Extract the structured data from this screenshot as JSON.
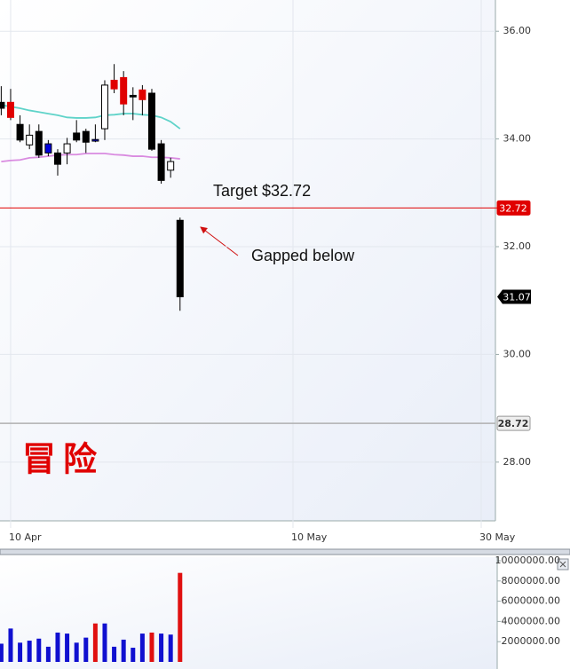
{
  "chart_data": [
    {
      "type": "candlestick",
      "x": [
        99,
        100,
        101,
        102,
        103,
        104,
        105,
        106,
        107,
        108,
        109,
        110,
        111,
        112,
        113,
        114,
        115,
        116,
        117,
        118
      ],
      "open": [
        34.68,
        34.68,
        34.27,
        33.89,
        34.14,
        33.91,
        33.74,
        33.74,
        34.11,
        34.14,
        33.99,
        34.19,
        35.09,
        35.14,
        34.81,
        34.91,
        34.85,
        33.91,
        33.42,
        32.49
      ],
      "high": [
        34.98,
        34.93,
        34.44,
        34.27,
        34.27,
        33.98,
        33.81,
        34.02,
        34.35,
        34.19,
        34.27,
        35.09,
        35.39,
        35.26,
        34.96,
        35.0,
        34.93,
        33.98,
        33.65,
        32.54
      ],
      "low": [
        34.44,
        34.35,
        33.94,
        33.81,
        33.65,
        33.68,
        33.32,
        33.53,
        33.94,
        33.74,
        33.94,
        33.98,
        34.85,
        34.44,
        34.35,
        34.44,
        33.78,
        33.17,
        33.28,
        30.81
      ],
      "close": [
        34.57,
        34.4,
        33.98,
        34.07,
        33.7,
        33.74,
        33.53,
        33.91,
        33.98,
        33.94,
        33.96,
        35.0,
        34.93,
        34.65,
        34.78,
        34.73,
        33.81,
        33.23,
        33.58,
        31.07
      ],
      "colors": [
        "#000000",
        "#e00000",
        "#000000",
        "#ffffff",
        "#000000",
        "#0000dd",
        "#000000",
        "#ffffff",
        "#000000",
        "#000000",
        "#0000dd",
        "#ffffff",
        "#e00000",
        "#e00000",
        "#000000",
        "#e00000",
        "#000000",
        "#000000",
        "#ffffff",
        "#000000"
      ],
      "lines": [
        {
          "color": "#5fd3c9",
          "values": [
            34.63,
            34.6,
            34.57,
            34.53,
            34.5,
            34.47,
            34.44,
            34.4,
            34.39,
            34.39,
            34.4,
            34.44,
            34.45,
            34.47,
            34.47,
            34.45,
            34.44,
            34.4,
            34.32,
            34.19
          ]
        },
        {
          "color": "#d98be0",
          "values": [
            33.58,
            33.6,
            33.61,
            33.65,
            33.66,
            33.68,
            33.7,
            33.71,
            33.71,
            33.73,
            33.73,
            33.73,
            33.71,
            33.7,
            33.68,
            33.68,
            33.66,
            33.66,
            33.65,
            33.63
          ]
        }
      ],
      "xlim": [
        98.87,
        151.51
      ],
      "xticks": [
        {
          "value": 100,
          "label": "10 Apr"
        },
        {
          "value": 130,
          "label": "10 May"
        },
        {
          "value": 150,
          "label": "30 May"
        }
      ],
      "ylim": [
        26.91,
        36.58
      ],
      "yticks": [
        {
          "value": 28,
          "label": "28.00"
        },
        {
          "value": 30,
          "label": "30.00"
        },
        {
          "value": 32,
          "label": "32.00"
        },
        {
          "value": 34,
          "label": "34.00"
        },
        {
          "value": 36,
          "label": "36.00"
        }
      ],
      "levels": [
        {
          "value": 32.72,
          "color": "#e00000"
        },
        {
          "value": 28.72,
          "color": "#b0b0b0"
        }
      ],
      "last_price": 31.07,
      "annotations": [
        {
          "text": "Target $32.72"
        },
        {
          "text": "Gapped below"
        },
        {
          "text": "冒险"
        }
      ]
    },
    {
      "type": "bar",
      "x": [
        99,
        100,
        101,
        102,
        103,
        104,
        105,
        106,
        107,
        108,
        109,
        110,
        111,
        112,
        113,
        114,
        115,
        116,
        117,
        118
      ],
      "values": [
        1800000,
        3300000,
        1900000,
        2100000,
        2300000,
        1500000,
        2900000,
        2800000,
        1900000,
        2400000,
        3800000,
        3800000,
        1500000,
        2200000,
        1400000,
        2800000,
        2900000,
        2800000,
        2700000,
        8800000
      ],
      "colors": [
        "#1010d0",
        "#1010d0",
        "#1010d0",
        "#1010d0",
        "#1010d0",
        "#1010d0",
        "#1010d0",
        "#1010d0",
        "#1010d0",
        "#1010d0",
        "#e01010",
        "#1010d0",
        "#1010d0",
        "#1010d0",
        "#1010d0",
        "#1010d0",
        "#e01010",
        "#1010d0",
        "#1010d0",
        "#e01010"
      ],
      "xlim": [
        98.87,
        151.51
      ],
      "ylim": [
        0,
        10350000
      ],
      "yticks": [
        {
          "value": 2000000,
          "label": "2000000.00"
        },
        {
          "value": 4000000,
          "label": "4000000.00"
        },
        {
          "value": 6000000,
          "label": "6000000.00"
        },
        {
          "value": 8000000,
          "label": "8000000.00"
        },
        {
          "value": 10000000,
          "label": "10000000.00"
        }
      ]
    }
  ]
}
